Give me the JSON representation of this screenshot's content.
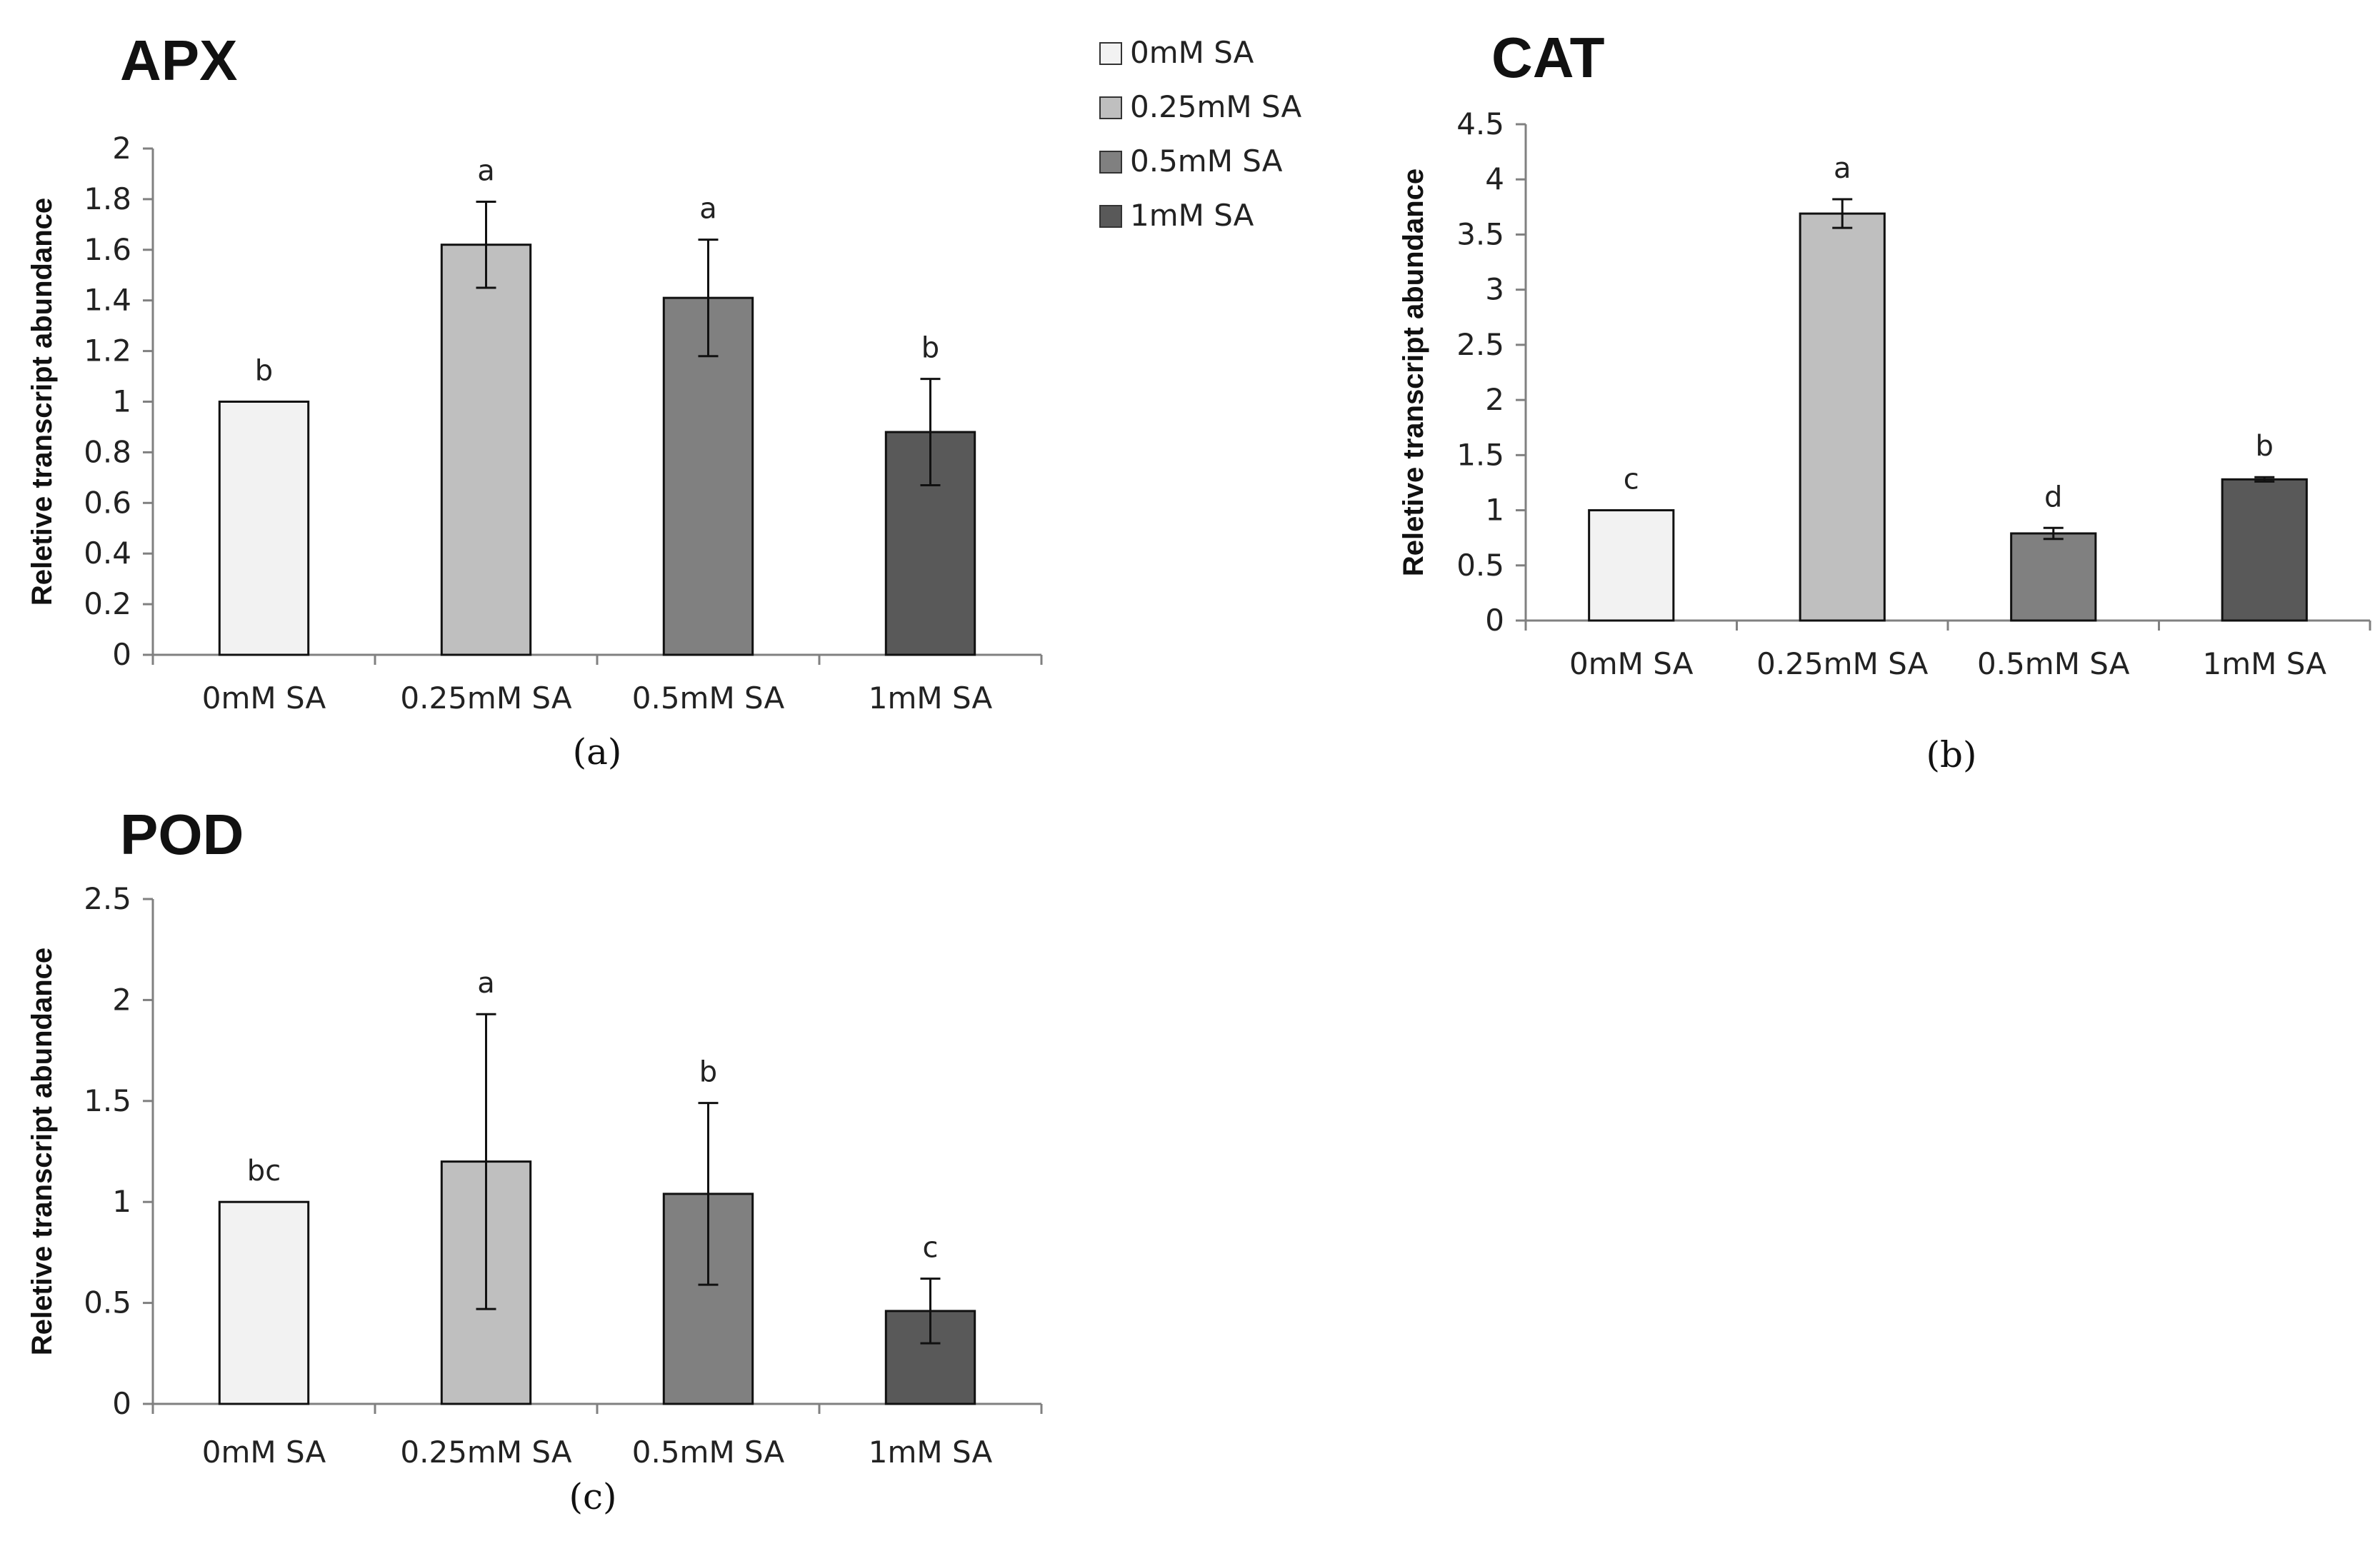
{
  "legend": [
    {
      "label": "0mM SA",
      "color": "#f2f2f2"
    },
    {
      "label": "0.25mM SA",
      "color": "#bfbfbf"
    },
    {
      "label": "0.5mM SA",
      "color": "#808080"
    },
    {
      "label": "1mM SA",
      "color": "#595959"
    }
  ],
  "chart_data": [
    {
      "type": "bar",
      "title": "APX",
      "panel_label": "(a)",
      "ylabel": "Reletive transcript abundance",
      "xlabel": "",
      "categories": [
        "0mM SA",
        "0.25mM SA",
        "0.5mM SA",
        "1mM SA"
      ],
      "values": [
        1.0,
        1.62,
        1.41,
        0.88
      ],
      "errors": [
        0,
        0.17,
        0.23,
        0.21
      ],
      "significance": [
        "b",
        "a",
        "a",
        "b"
      ],
      "colors": [
        "#f2f2f2",
        "#bfbfbf",
        "#808080",
        "#595959"
      ],
      "ylim": [
        0,
        2
      ],
      "yticks": [
        0,
        0.2,
        0.4,
        0.6,
        0.8,
        1,
        1.2,
        1.4,
        1.6,
        1.8,
        2
      ],
      "ytick_labels": [
        "0",
        "0.2",
        "0.4",
        "0.6",
        "0.8",
        "1",
        "1.2",
        "1.4",
        "1.6",
        "1.8",
        "2"
      ],
      "grid": false
    },
    {
      "type": "bar",
      "title": "CAT",
      "panel_label": "(b)",
      "ylabel": "Reletive transcript abundance",
      "xlabel": "",
      "categories": [
        "0mM SA",
        "0.25mM SA",
        "0.5mM SA",
        "1mM SA"
      ],
      "values": [
        1.0,
        3.69,
        0.79,
        1.28
      ],
      "errors": [
        0,
        0.13,
        0.05,
        0.02
      ],
      "significance": [
        "c",
        "a",
        "d",
        "b"
      ],
      "colors": [
        "#f2f2f2",
        "#bfbfbf",
        "#808080",
        "#595959"
      ],
      "ylim": [
        0,
        4.5
      ],
      "yticks": [
        0,
        0.5,
        1,
        1.5,
        2,
        2.5,
        3,
        3.5,
        4,
        4.5
      ],
      "ytick_labels": [
        "0",
        "0.5",
        "1",
        "1.5",
        "2",
        "2.5",
        "3",
        "3.5",
        "4",
        "4.5"
      ],
      "grid": false
    },
    {
      "type": "bar",
      "title": "POD",
      "panel_label": "(c)",
      "ylabel": "Reletive transcript abundance",
      "xlabel": "",
      "categories": [
        "0mM SA",
        "0.25mM SA",
        "0.5mM SA",
        "1mM SA"
      ],
      "values": [
        1.0,
        1.2,
        1.04,
        0.46
      ],
      "errors": [
        0,
        0.73,
        0.45,
        0.16
      ],
      "significance": [
        "bc",
        "a",
        "b",
        "c"
      ],
      "colors": [
        "#f2f2f2",
        "#bfbfbf",
        "#808080",
        "#595959"
      ],
      "ylim": [
        0,
        2.5
      ],
      "yticks": [
        0,
        0.5,
        1,
        1.5,
        2,
        2.5
      ],
      "ytick_labels": [
        "0",
        "0.5",
        "1",
        "1.5",
        "2",
        "2.5"
      ],
      "grid": false
    }
  ]
}
